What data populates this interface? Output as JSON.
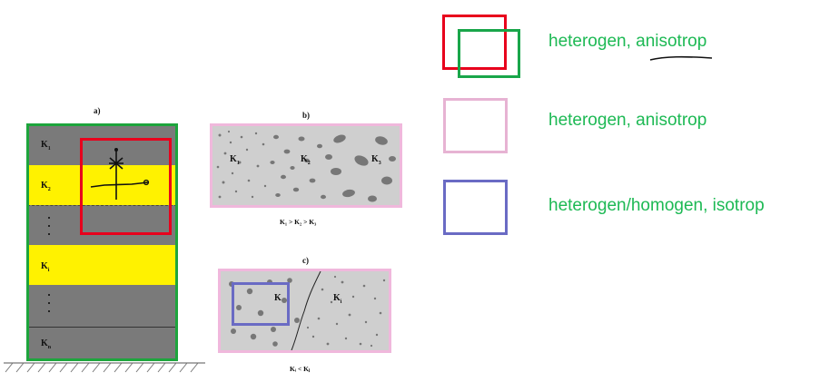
{
  "panels": {
    "a": {
      "label": "a)"
    },
    "b": {
      "label": "b)",
      "labels": [
        "K",
        "K",
        "K"
      ],
      "subs": [
        "1",
        "2",
        "3"
      ],
      "formula": "K₁ > K₂ > K₃"
    },
    "c": {
      "label": "c)",
      "labels": [
        "K",
        "K"
      ],
      "subs": [
        "",
        "i"
      ],
      "formula": "Kᵢ < Kⱼ"
    }
  },
  "layers": {
    "labels": [
      "K",
      "K",
      "K",
      "K"
    ],
    "subs": [
      "1",
      "2",
      "i",
      "n"
    ]
  },
  "legend": [
    {
      "text": "heterogen, anisotrop",
      "color": "#e8001c",
      "color2": "#19a64a"
    },
    {
      "text": "heterogen, anisotrop",
      "color": "#e7b3d3"
    },
    {
      "text": "heterogen/homogen, isotrop",
      "color": "#6a6bc4"
    }
  ],
  "colors": {
    "gray_layer": "#7a7a7a",
    "yellow_layer": "#fff200",
    "annotation_green": "#1db954",
    "sand": "#cfcfcf"
  }
}
